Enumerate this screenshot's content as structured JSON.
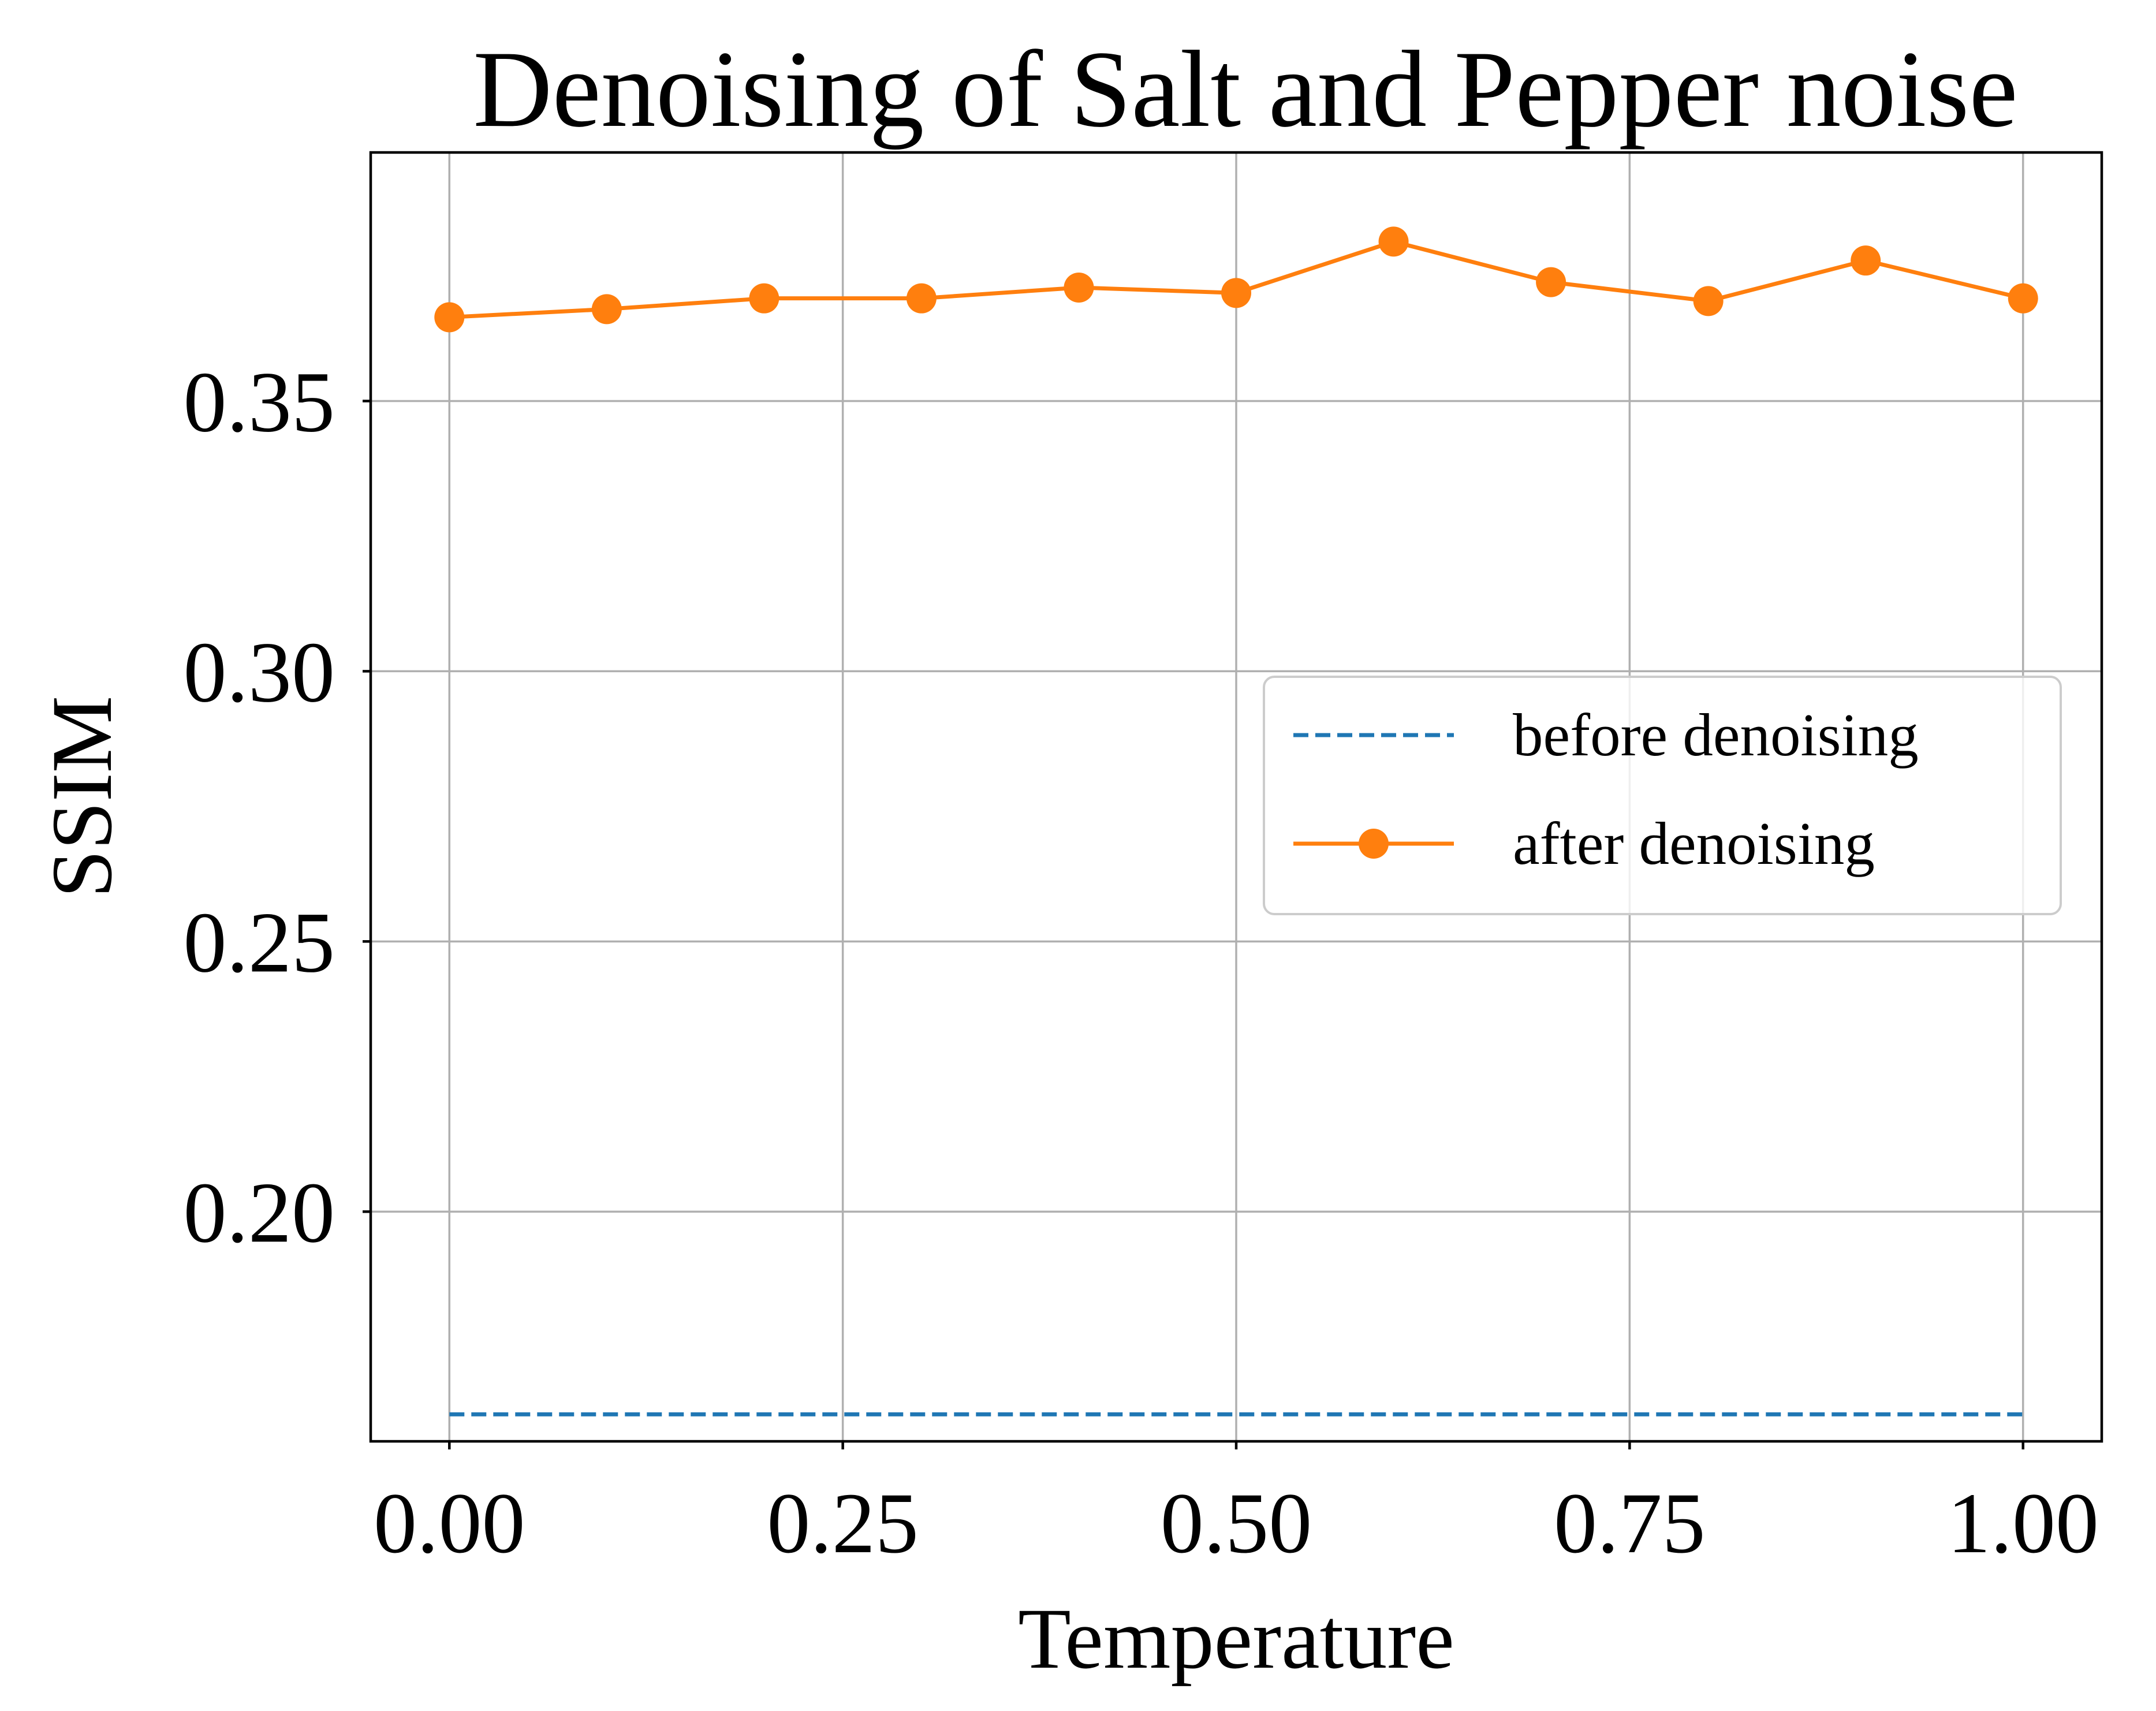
{
  "chart_data": {
    "type": "line",
    "title": "Denoising of Salt and Pepper noise",
    "xlabel": "Temperature",
    "ylabel": "SSIM",
    "xlim": [
      -0.05,
      1.05
    ],
    "ylim": [
      0.1575,
      0.396
    ],
    "xticks": [
      0.0,
      0.25,
      0.5,
      0.75,
      1.0
    ],
    "xtick_labels": [
      "0.00",
      "0.25",
      "0.50",
      "0.75",
      "1.00"
    ],
    "yticks": [
      0.2,
      0.25,
      0.3,
      0.35
    ],
    "ytick_labels": [
      "0.20",
      "0.25",
      "0.30",
      "0.35"
    ],
    "grid": true,
    "legend_position": "center-right",
    "series": [
      {
        "name": "before denoising",
        "style": "dashed",
        "color": "#1f77b4",
        "marker": "none",
        "x": [
          0.0,
          1.0
        ],
        "y": [
          0.1625,
          0.1625
        ]
      },
      {
        "name": "after denoising",
        "style": "solid",
        "color": "#ff7f0e",
        "marker": "circle",
        "x": [
          0.0,
          0.1,
          0.2,
          0.3,
          0.4,
          0.5,
          0.6,
          0.7,
          0.8,
          0.9,
          1.0
        ],
        "y": [
          0.3655,
          0.367,
          0.369,
          0.369,
          0.371,
          0.37,
          0.3795,
          0.372,
          0.3685,
          0.376,
          0.369
        ]
      }
    ]
  }
}
